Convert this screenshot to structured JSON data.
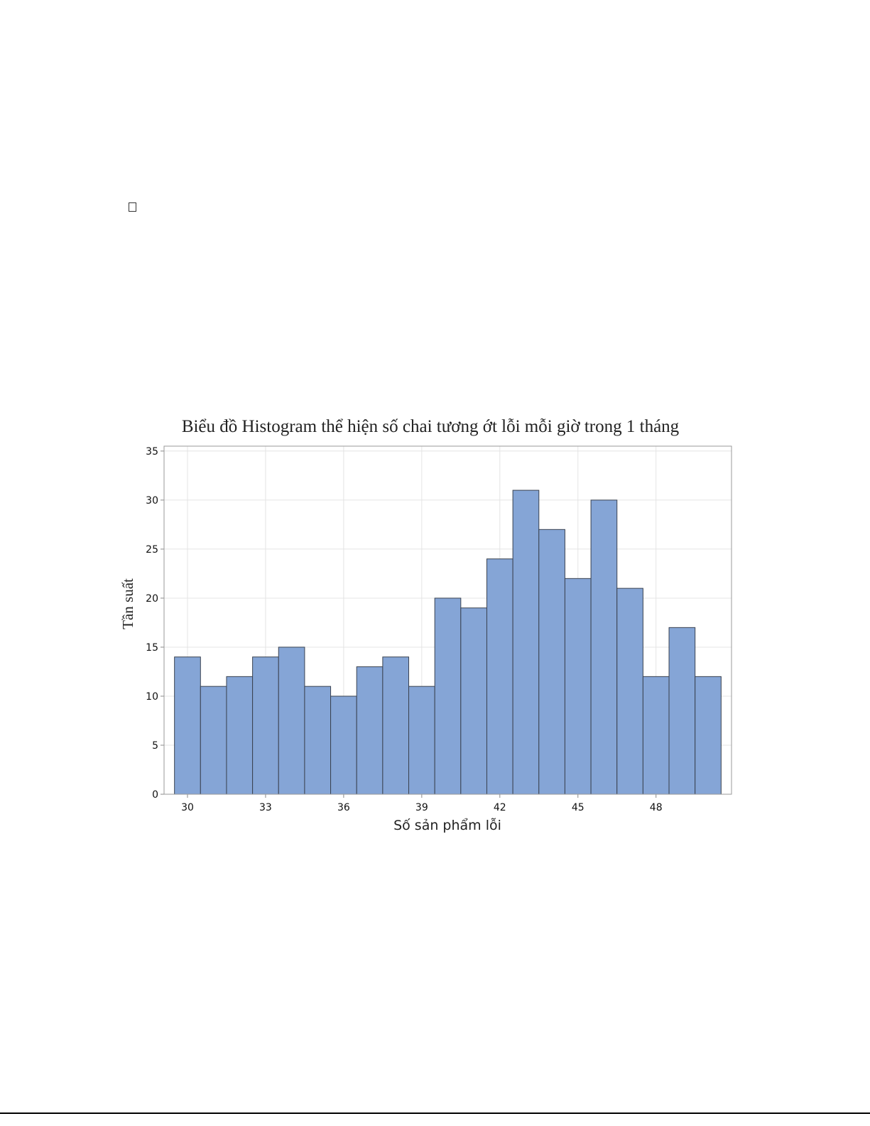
{
  "chart_data": {
    "type": "bar",
    "title": "Biểu đồ Histogram thể hiện số chai tương ớt lỗi mỗi giờ trong 1 tháng",
    "xlabel": "Số sản phẩm lỗi",
    "ylabel": "Tần suất",
    "bin_width": 1,
    "bin_start": 29.5,
    "x_tick_labels": [
      "30",
      "33",
      "36",
      "39",
      "42",
      "45",
      "48"
    ],
    "y_tick_labels": [
      "0",
      "5",
      "10",
      "15",
      "20",
      "25",
      "30",
      "35"
    ],
    "xlim": [
      29.1,
      50.9
    ],
    "ylim": [
      0,
      35.5
    ],
    "values": [
      14,
      11,
      12,
      14,
      15,
      11,
      10,
      13,
      14,
      11,
      20,
      19,
      24,
      31,
      27,
      22,
      30,
      21,
      12,
      17,
      12
    ],
    "grid": true,
    "bar_color": "#85A5D6",
    "bar_edge_color": "#3a4250"
  }
}
